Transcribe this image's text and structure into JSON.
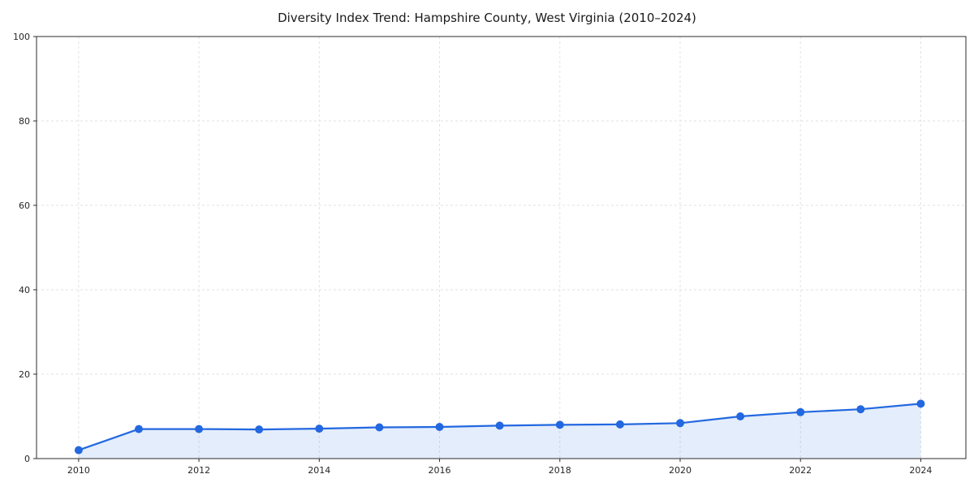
{
  "chart_data": {
    "type": "line",
    "title": "Diversity Index Trend: Hampshire County, West Virginia (2010–2024)",
    "x": [
      2010,
      2011,
      2012,
      2013,
      2014,
      2015,
      2016,
      2017,
      2018,
      2019,
      2020,
      2021,
      2022,
      2023,
      2024
    ],
    "values": [
      2,
      7,
      7,
      6.9,
      7.1,
      7.4,
      7.5,
      7.8,
      8,
      8.1,
      8.4,
      10,
      11,
      11.7,
      13
    ],
    "xlabel": "",
    "ylabel": "",
    "xlim": [
      2009.3,
      2024.75
    ],
    "ylim": [
      0,
      100
    ],
    "yticks": [
      0,
      20,
      40,
      60,
      80,
      100
    ],
    "xticks": [
      2010,
      2012,
      2014,
      2016,
      2018,
      2020,
      2022,
      2024
    ],
    "grid": true,
    "grid_style": "dashed",
    "legend_position": "none",
    "colors": {
      "line": "#2368e0",
      "marker": "#2368e0",
      "area_fill": "#2368e0",
      "area_fill_opacity": 0.12,
      "grid": "#e2e2e2",
      "spine": "#2b2b2b",
      "tick_label": "#262626",
      "background": "#ffffff"
    }
  }
}
